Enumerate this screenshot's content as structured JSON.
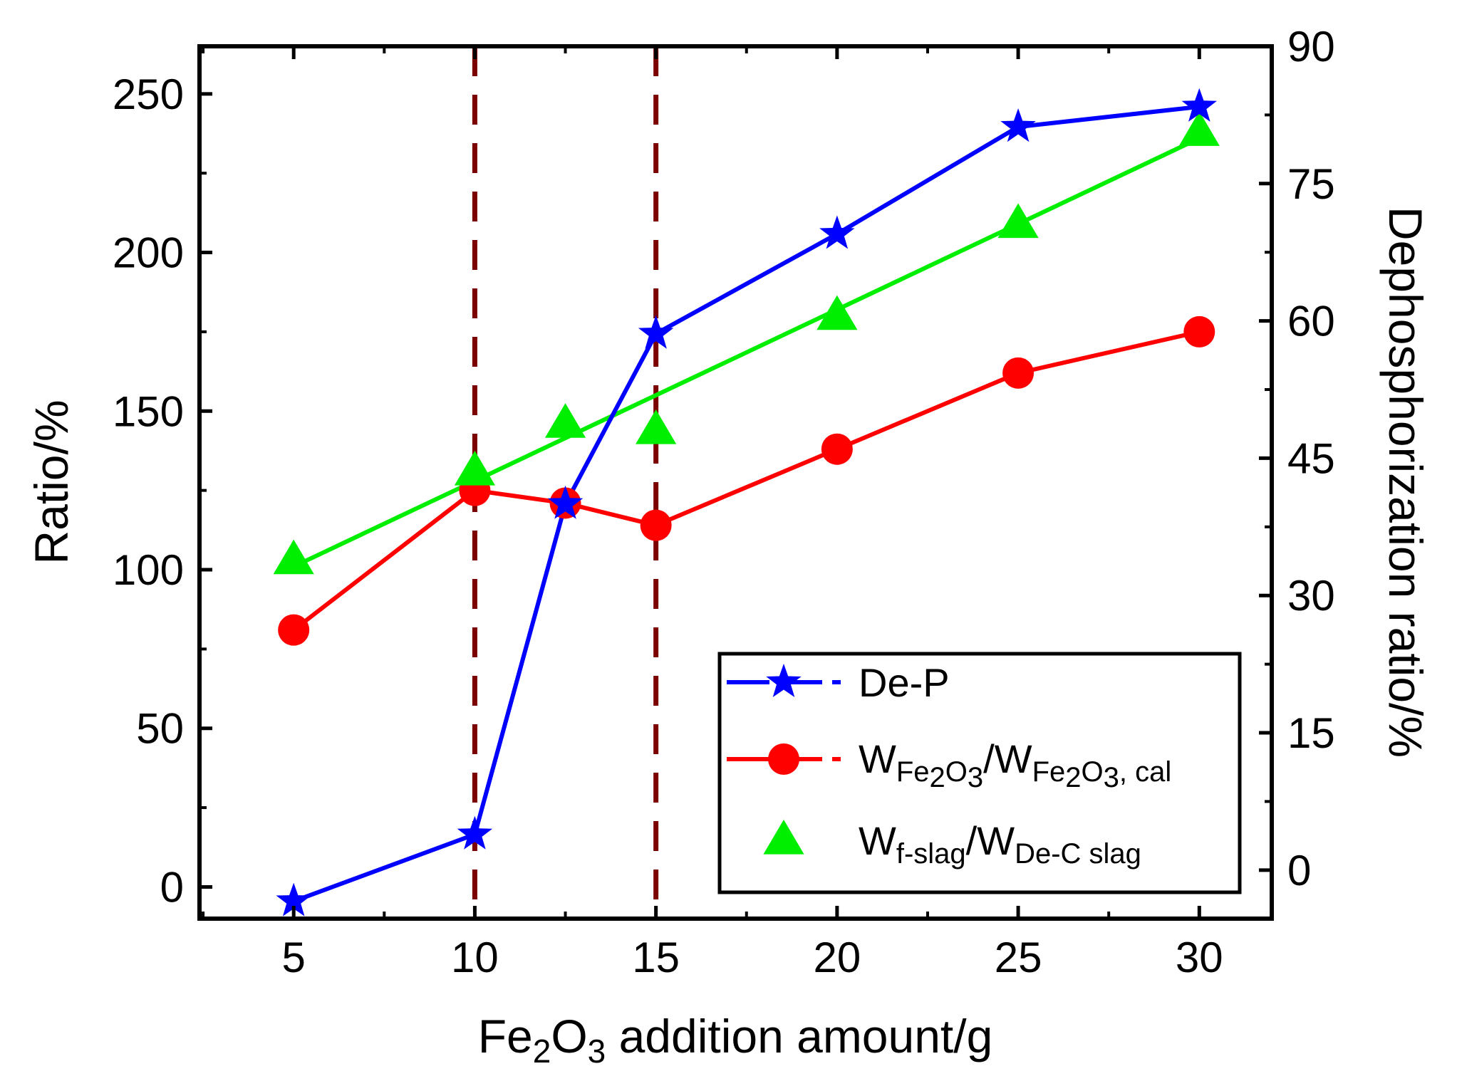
{
  "chart_data": {
    "type": "line",
    "xlabel": {
      "main": "Fe",
      "sub1": "2",
      "mid": "O",
      "sub2": "3",
      "rest": " addition amount/g"
    },
    "ylabel_left": "Ratio/%",
    "ylabel_right": "Dephosphorization ratio/%",
    "xlim": [
      2.4,
      32.0
    ],
    "ylim_left": [
      -10,
      265
    ],
    "ylim_right": [
      -5.3,
      90
    ],
    "x_ticks": [
      5,
      10,
      15,
      20,
      25,
      30
    ],
    "x_tick_labels": [
      "5",
      "10",
      "15",
      "20",
      "25",
      "30"
    ],
    "y_left_ticks": [
      0,
      50,
      100,
      150,
      200,
      250
    ],
    "y_left_tick_labels": [
      "0",
      "50",
      "100",
      "150",
      "200",
      "250"
    ],
    "y_right_ticks": [
      0,
      15,
      30,
      45,
      60,
      75,
      90
    ],
    "y_right_tick_labels": [
      "0",
      "15",
      "30",
      "45",
      "60",
      "75",
      "90"
    ],
    "vertical_lines": [
      10,
      15
    ],
    "colors": {
      "de_p": "#0000ff",
      "fe2o3": "#ff0000",
      "slag": "#00ee00",
      "vline": "#7b0000"
    },
    "series": [
      {
        "name": "De-P",
        "axis": "right",
        "marker": "star",
        "x": [
          5,
          10,
          12.5,
          15,
          20,
          25,
          30
        ],
        "values": [
          -3.4,
          3.9,
          40.0,
          58.6,
          69.5,
          81.2,
          83.4
        ]
      },
      {
        "name": "WFe2O3/WFe2O3, cal",
        "axis": "left",
        "marker": "circle",
        "x": [
          5,
          10,
          12.5,
          15,
          20,
          25,
          30
        ],
        "values": [
          81,
          125,
          121,
          114,
          138,
          162,
          175
        ]
      },
      {
        "name": "Wf-slag/WDe-C slag",
        "axis": "left",
        "marker": "triangle",
        "x": [
          5,
          10,
          12.5,
          15,
          20,
          25,
          30
        ],
        "values": [
          103,
          131,
          146,
          144,
          180,
          209,
          238
        ],
        "fit": {
          "x": [
            5,
            30
          ],
          "values": [
            101,
            236
          ]
        }
      }
    ],
    "legend": {
      "position": "bottom-right",
      "entries": [
        {
          "label": "De-P"
        },
        {
          "main1": "W",
          "sub1a": "Fe",
          "sub1b": "2",
          "sub1c": "O",
          "sub1d": "3",
          "slash": "/",
          "main2": "W",
          "sub2a": "Fe",
          "sub2b": "2",
          "sub2c": "O",
          "sub2d": "3",
          "sub2e": ", cal"
        },
        {
          "main1": "W",
          "sub1": "f-slag",
          "slash": "/",
          "main2": "W",
          "sub2": "De-C slag"
        }
      ]
    }
  }
}
